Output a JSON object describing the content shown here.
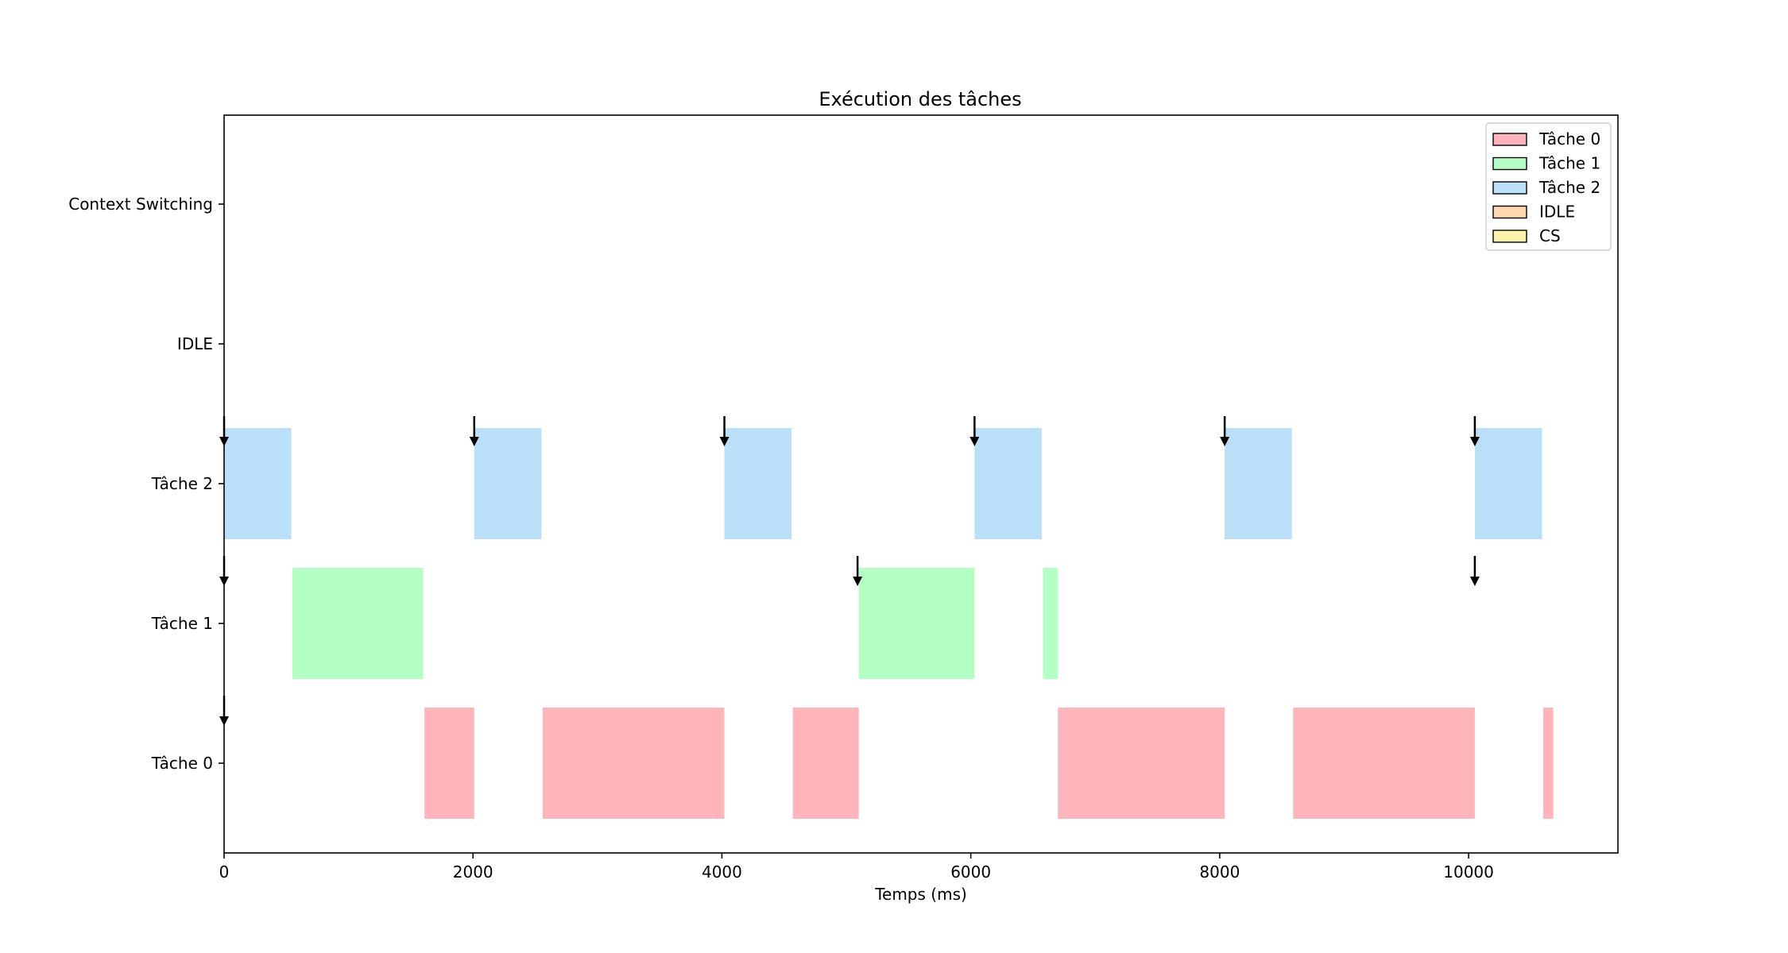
{
  "chart_data": {
    "type": "gantt",
    "title": "Exécution des tâches",
    "xlabel": "Temps (ms)",
    "ylabel": "",
    "xlim": [
      0,
      11200
    ],
    "xticks": [
      0,
      2000,
      4000,
      6000,
      8000,
      10000
    ],
    "rows": [
      "Tâche 0",
      "Tâche 1",
      "Tâche 2",
      "IDLE",
      "Context Switching"
    ],
    "legend": {
      "placement": "top-right",
      "entries": [
        {
          "label": "Tâche 0",
          "color": "#ffb3bb"
        },
        {
          "label": "Tâche 1",
          "color": "#b3ffc4"
        },
        {
          "label": "Tâche 2",
          "color": "#badff9"
        },
        {
          "label": "IDLE",
          "color": "#ffd7ad"
        },
        {
          "label": "CS",
          "color": "#fff2aa"
        }
      ]
    },
    "segments": [
      {
        "row": "Tâche 2",
        "start": 0,
        "end": 540,
        "color": "#badff9"
      },
      {
        "row": "Tâche 2",
        "start": 2010,
        "end": 2550,
        "color": "#badff9"
      },
      {
        "row": "Tâche 2",
        "start": 4020,
        "end": 4560,
        "color": "#badff9"
      },
      {
        "row": "Tâche 2",
        "start": 6030,
        "end": 6570,
        "color": "#badff9"
      },
      {
        "row": "Tâche 2",
        "start": 8040,
        "end": 8580,
        "color": "#badff9"
      },
      {
        "row": "Tâche 2",
        "start": 10050,
        "end": 10590,
        "color": "#badff9"
      },
      {
        "row": "Tâche 1",
        "start": 550,
        "end": 1600,
        "color": "#b3ffc4"
      },
      {
        "row": "Tâche 1",
        "start": 5100,
        "end": 6030,
        "color": "#b3ffc4"
      },
      {
        "row": "Tâche 1",
        "start": 6580,
        "end": 6700,
        "color": "#b3ffc4"
      },
      {
        "row": "Tâche 0",
        "start": 1610,
        "end": 2010,
        "color": "#ffb3bb"
      },
      {
        "row": "Tâche 0",
        "start": 2560,
        "end": 4020,
        "color": "#ffb3bb"
      },
      {
        "row": "Tâche 0",
        "start": 4570,
        "end": 5100,
        "color": "#ffb3bb"
      },
      {
        "row": "Tâche 0",
        "start": 6700,
        "end": 8040,
        "color": "#ffb3bb"
      },
      {
        "row": "Tâche 0",
        "start": 8590,
        "end": 10050,
        "color": "#ffb3bb"
      },
      {
        "row": "Tâche 0",
        "start": 10600,
        "end": 10680,
        "color": "#ffb3bb"
      }
    ],
    "arrivals": [
      {
        "row": "Tâche 2",
        "t": 0
      },
      {
        "row": "Tâche 2",
        "t": 2010
      },
      {
        "row": "Tâche 2",
        "t": 4020
      },
      {
        "row": "Tâche 2",
        "t": 6030
      },
      {
        "row": "Tâche 2",
        "t": 8040
      },
      {
        "row": "Tâche 2",
        "t": 10050
      },
      {
        "row": "Tâche 1",
        "t": 0
      },
      {
        "row": "Tâche 1",
        "t": 5090
      },
      {
        "row": "Tâche 1",
        "t": 10050
      },
      {
        "row": "Tâche 0",
        "t": 0
      }
    ],
    "grid": false
  }
}
